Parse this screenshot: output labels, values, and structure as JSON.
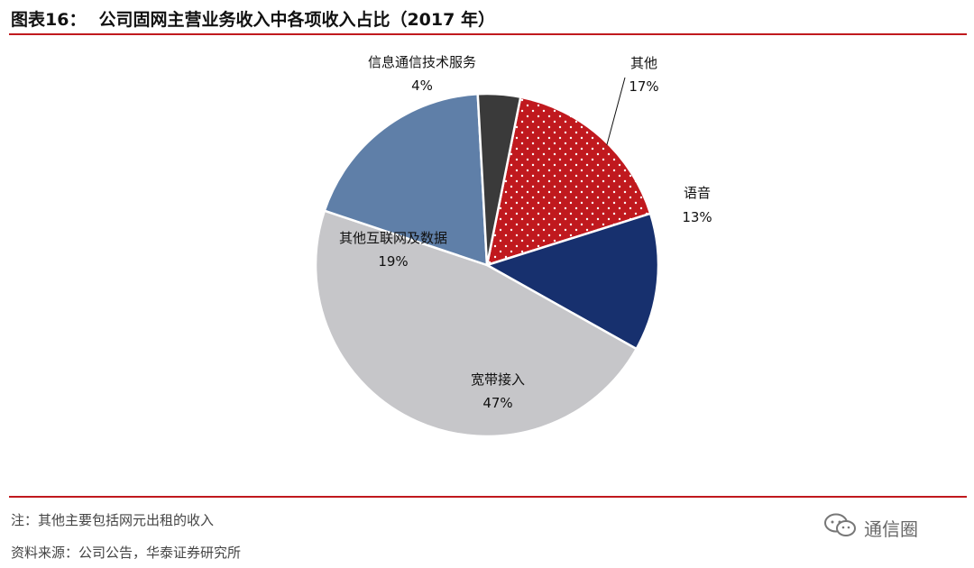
{
  "header": {
    "figure_label": "图表16：",
    "title": "公司固网主营业务收入中各项收入占比（2017 年）"
  },
  "chart_data": {
    "type": "pie",
    "title": "公司固网主营业务收入中各项收入占比（2017 年）",
    "slices": [
      {
        "label": "其他",
        "pct_label": "17%",
        "value": 17,
        "color": "#c0191e",
        "pattern": "dots"
      },
      {
        "label": "语音",
        "pct_label": "13%",
        "value": 13,
        "color": "#17306e"
      },
      {
        "label": "宽带接入",
        "pct_label": "47%",
        "value": 47,
        "color": "#c6c6c9"
      },
      {
        "label": "其他互联网及数据",
        "pct_label": "19%",
        "value": 19,
        "color": "#5f7fa8"
      },
      {
        "label": "信息通信技术服务",
        "pct_label": "4%",
        "value": 4,
        "color": "#3a3a3a"
      }
    ]
  },
  "footer": {
    "note": "注：其他主要包括网元出租的收入",
    "source": "资料来源：公司公告，华泰证券研究所"
  },
  "watermark": {
    "text": "通信圈",
    "icon": "wechat-icon"
  },
  "colors": {
    "accent_rule": "#c0191e"
  }
}
